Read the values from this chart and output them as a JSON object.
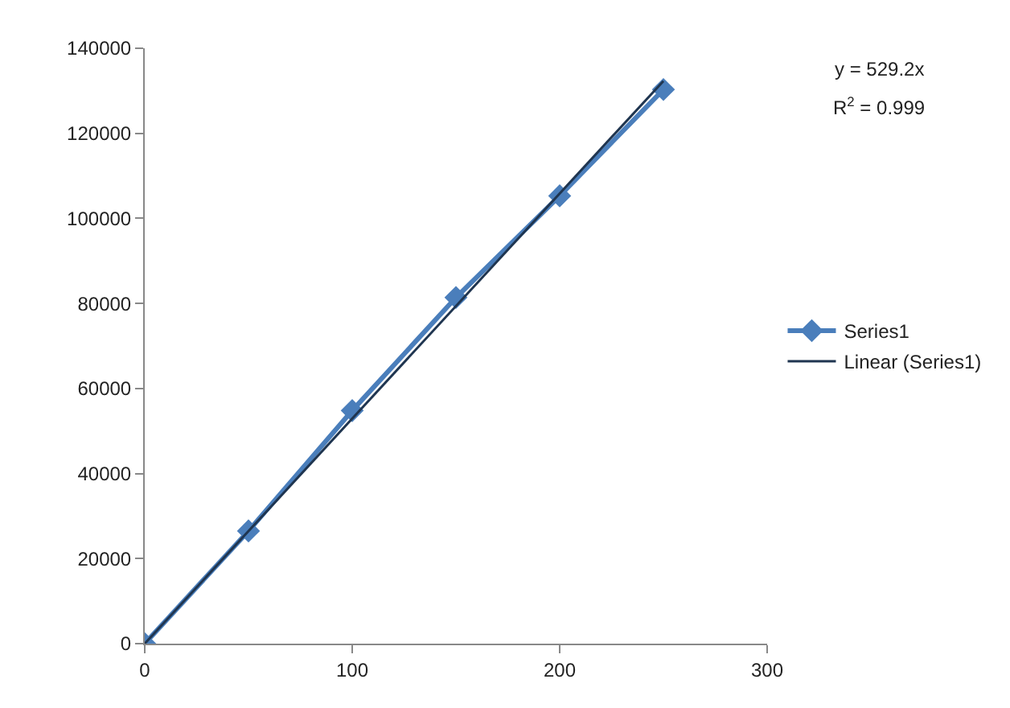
{
  "chart_data": {
    "type": "line",
    "x": [
      0,
      50,
      100,
      150,
      200,
      250
    ],
    "series": [
      {
        "name": "Series1",
        "color": "#4a7ebb",
        "values": [
          0,
          26500,
          54800,
          81400,
          105300,
          130300
        ],
        "marker": "diamond"
      },
      {
        "name": "Linear (Series1)",
        "color": "#1f3550",
        "x": [
          0,
          250
        ],
        "values": [
          0,
          132300
        ],
        "marker": "none"
      }
    ],
    "xlim": [
      0,
      300
    ],
    "xticks": [
      0,
      100,
      200,
      300
    ],
    "ylim": [
      0,
      140000
    ],
    "yticks": [
      0,
      20000,
      40000,
      60000,
      80000,
      100000,
      120000,
      140000
    ],
    "annotations": [
      "y = 529.2x",
      "R$^{2}$ = 0.999"
    ],
    "legend": "right"
  }
}
